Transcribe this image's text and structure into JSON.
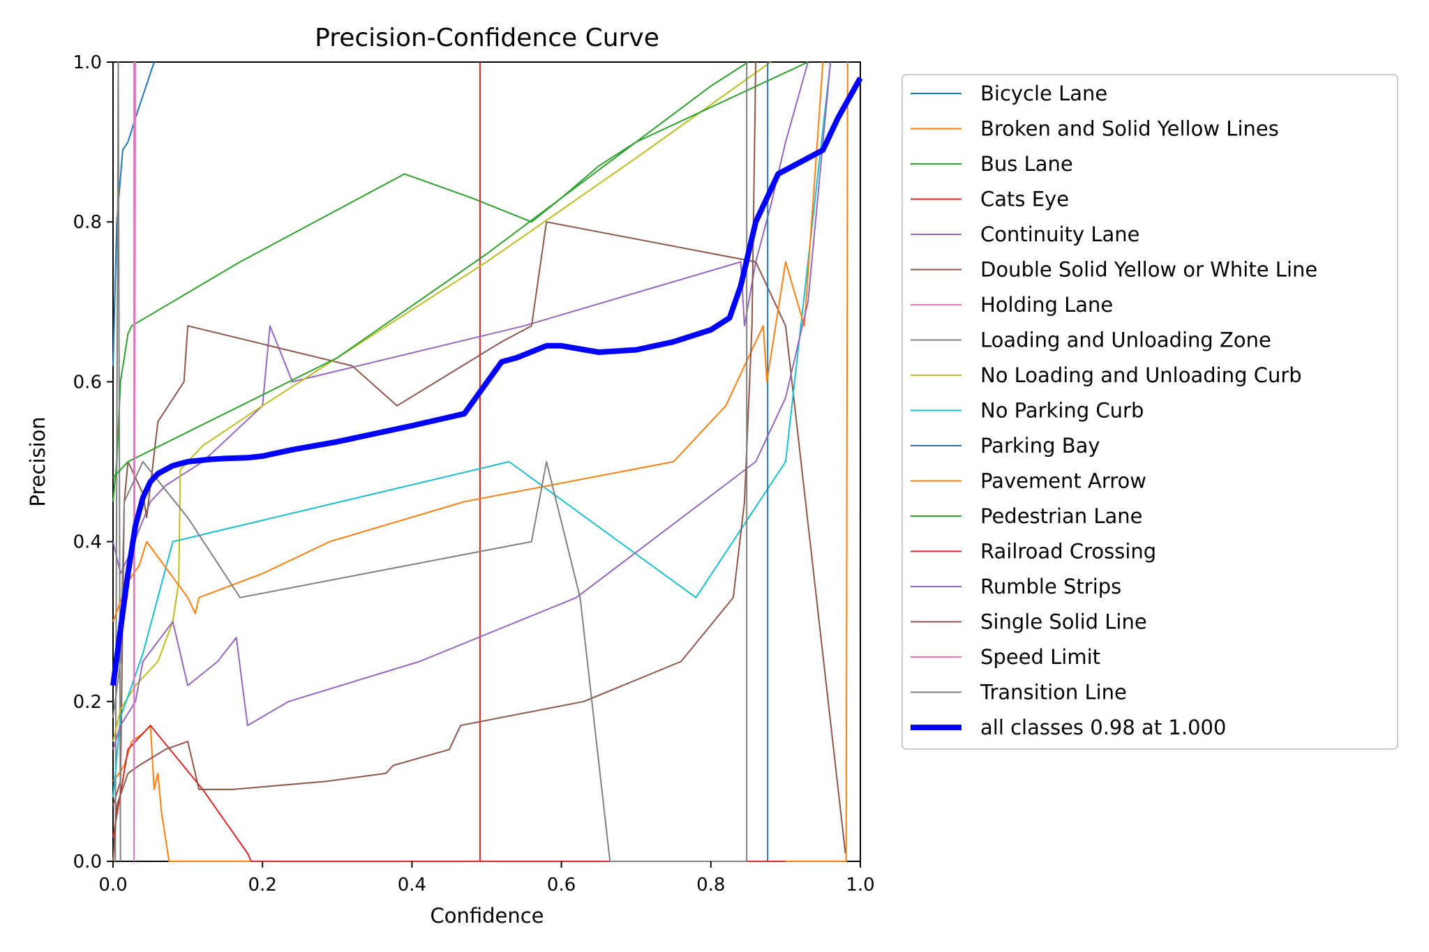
{
  "chart_data": {
    "type": "line",
    "title": "Precision-Confidence Curve",
    "xlabel": "Confidence",
    "ylabel": "Precision",
    "xlim": [
      0,
      1
    ],
    "ylim": [
      0,
      1
    ],
    "xticks": [
      "0.0",
      "0.2",
      "0.4",
      "0.6",
      "0.8",
      "1.0"
    ],
    "yticks": [
      "0.0",
      "0.2",
      "0.4",
      "0.6",
      "0.8",
      "1.0"
    ],
    "grid": false,
    "legend_position": "outside-right",
    "series": [
      {
        "name": "Bicycle Lane",
        "color": "#1f77b4",
        "points": [
          [
            0,
            0.62
          ],
          [
            0.005,
            0.8
          ],
          [
            0.013,
            0.89
          ],
          [
            0.02,
            0.9
          ],
          [
            0.03,
            0.93
          ],
          [
            0.055,
            1.0
          ]
        ]
      },
      {
        "name": "Broken and Solid Yellow Lines",
        "color": "#ff7f0e",
        "points": [
          [
            0,
            0.1
          ],
          [
            0.008,
            0.11
          ],
          [
            0.015,
            0.12
          ],
          [
            0.025,
            0.15
          ],
          [
            0.04,
            0.16
          ],
          [
            0.05,
            0.17
          ],
          [
            0.055,
            0.09
          ],
          [
            0.06,
            0.11
          ],
          [
            0.065,
            0.06
          ],
          [
            0.075,
            0.0
          ],
          [
            0.3,
            0.0
          ],
          [
            0.6,
            0.0
          ],
          [
            0.9,
            0.0
          ],
          [
            0.981,
            0.0
          ],
          [
            0.983,
            1.0
          ]
        ]
      },
      {
        "name": "Bus Lane",
        "color": "#2ca02c",
        "points": [
          [
            0,
            0.45
          ],
          [
            0.005,
            0.5
          ],
          [
            0.01,
            0.6
          ],
          [
            0.02,
            0.66
          ],
          [
            0.025,
            0.67
          ],
          [
            0.17,
            0.75
          ],
          [
            0.39,
            0.86
          ],
          [
            0.48,
            0.83
          ],
          [
            0.56,
            0.8
          ],
          [
            0.6,
            0.83
          ],
          [
            0.65,
            0.87
          ],
          [
            0.7,
            0.9
          ],
          [
            0.8,
            0.97
          ],
          [
            0.85,
            1.0
          ]
        ]
      },
      {
        "name": "Cats Eye",
        "color": "#d62728",
        "points": [
          [
            0.491,
            0.0
          ],
          [
            0.491,
            1.0
          ]
        ]
      },
      {
        "name": "Continuity Lane",
        "color": "#9467bd",
        "points": [
          [
            0,
            0.4
          ],
          [
            0.01,
            0.36
          ],
          [
            0.02,
            0.38
          ],
          [
            0.05,
            0.45
          ],
          [
            0.07,
            0.47
          ],
          [
            0.12,
            0.5
          ],
          [
            0.2,
            0.57
          ],
          [
            0.21,
            0.67
          ],
          [
            0.24,
            0.6
          ],
          [
            0.55,
            0.67
          ],
          [
            0.84,
            0.75
          ],
          [
            0.845,
            0.67
          ],
          [
            0.86,
            0.75
          ],
          [
            0.88,
            0.82
          ],
          [
            0.9,
            0.9
          ],
          [
            0.93,
            1.0
          ]
        ]
      },
      {
        "name": "Double Solid Yellow or White Line",
        "color": "#8c564b",
        "points": [
          [
            0,
            0.07
          ],
          [
            0.01,
            0.1
          ],
          [
            0.015,
            0.45
          ],
          [
            0.02,
            0.5
          ],
          [
            0.04,
            0.46
          ],
          [
            0.045,
            0.43
          ],
          [
            0.06,
            0.55
          ],
          [
            0.095,
            0.6
          ],
          [
            0.1,
            0.67
          ],
          [
            0.32,
            0.62
          ],
          [
            0.38,
            0.57
          ],
          [
            0.52,
            0.65
          ],
          [
            0.56,
            0.67
          ],
          [
            0.58,
            0.8
          ],
          [
            0.86,
            0.75
          ],
          [
            0.9,
            0.67
          ],
          [
            0.98,
            0.01
          ]
        ]
      },
      {
        "name": "Holding Lane",
        "color": "#e377c2",
        "points": [
          [
            0.028,
            0.0
          ],
          [
            0.028,
            1.0
          ]
        ]
      },
      {
        "name": "Loading and Unloading Zone",
        "color": "#7f7f7f",
        "points": [
          [
            0.003,
            0.0
          ],
          [
            0.007,
            1.0
          ],
          [
            0.01,
            0.0
          ]
        ]
      },
      {
        "name": "No Loading and Unloading Curb",
        "color": "#bcbd22",
        "points": [
          [
            0,
            0.15
          ],
          [
            0.01,
            0.19
          ],
          [
            0.03,
            0.22
          ],
          [
            0.06,
            0.25
          ],
          [
            0.08,
            0.3
          ],
          [
            0.088,
            0.35
          ],
          [
            0.09,
            0.49
          ],
          [
            0.12,
            0.52
          ],
          [
            0.2,
            0.57
          ],
          [
            0.5,
            0.75
          ],
          [
            0.7,
            0.88
          ],
          [
            0.88,
            1.0
          ]
        ]
      },
      {
        "name": "No Parking Curb",
        "color": "#17becf",
        "points": [
          [
            0,
            0.08
          ],
          [
            0.01,
            0.18
          ],
          [
            0.025,
            0.22
          ],
          [
            0.04,
            0.26
          ],
          [
            0.08,
            0.4
          ],
          [
            0.53,
            0.5
          ],
          [
            0.78,
            0.33
          ],
          [
            0.9,
            0.5
          ],
          [
            0.96,
            1.0
          ]
        ]
      },
      {
        "name": "Parking Bay",
        "color": "#1f77b4",
        "points": [
          [
            0.876,
            0.0
          ],
          [
            0.876,
            1.0
          ]
        ]
      },
      {
        "name": "Pavement Arrow",
        "color": "#ff7f0e",
        "points": [
          [
            0,
            0.3
          ],
          [
            0.02,
            0.35
          ],
          [
            0.035,
            0.37
          ],
          [
            0.045,
            0.4
          ],
          [
            0.1,
            0.33
          ],
          [
            0.11,
            0.31
          ],
          [
            0.115,
            0.33
          ],
          [
            0.2,
            0.36
          ],
          [
            0.29,
            0.4
          ],
          [
            0.47,
            0.45
          ],
          [
            0.75,
            0.5
          ],
          [
            0.82,
            0.57
          ],
          [
            0.87,
            0.67
          ],
          [
            0.875,
            0.6
          ],
          [
            0.9,
            0.75
          ],
          [
            0.925,
            0.67
          ],
          [
            0.95,
            1.0
          ]
        ]
      },
      {
        "name": "Pedestrian Lane",
        "color": "#2ca02c",
        "points": [
          [
            0,
            0.48
          ],
          [
            0.02,
            0.5
          ],
          [
            0.3,
            0.63
          ],
          [
            0.5,
            0.76
          ],
          [
            0.7,
            0.9
          ],
          [
            0.93,
            1.0
          ]
        ]
      },
      {
        "name": "Railroad Crossing",
        "color": "#d62728",
        "points": [
          [
            0,
            0.03
          ],
          [
            0.02,
            0.14
          ],
          [
            0.05,
            0.17
          ],
          [
            0.12,
            0.09
          ],
          [
            0.18,
            0.01
          ],
          [
            0.185,
            0.0
          ],
          [
            0.5,
            0.0
          ],
          [
            0.9,
            0.0
          ]
        ]
      },
      {
        "name": "Rumble Strips",
        "color": "#9467bd",
        "points": [
          [
            0,
            0.14
          ],
          [
            0.01,
            0.17
          ],
          [
            0.03,
            0.2
          ],
          [
            0.04,
            0.25
          ],
          [
            0.08,
            0.3
          ],
          [
            0.1,
            0.22
          ],
          [
            0.14,
            0.25
          ],
          [
            0.165,
            0.28
          ],
          [
            0.18,
            0.17
          ],
          [
            0.235,
            0.2
          ],
          [
            0.41,
            0.25
          ],
          [
            0.62,
            0.33
          ],
          [
            0.86,
            0.5
          ],
          [
            0.9,
            0.58
          ],
          [
            0.93,
            0.7
          ],
          [
            0.96,
            1.0
          ]
        ]
      },
      {
        "name": "Single Solid Line",
        "color": "#8c564b",
        "points": [
          [
            0,
            0.0
          ],
          [
            0.005,
            0.07
          ],
          [
            0.02,
            0.11
          ],
          [
            0.035,
            0.12
          ],
          [
            0.07,
            0.14
          ],
          [
            0.1,
            0.15
          ],
          [
            0.115,
            0.09
          ],
          [
            0.16,
            0.09
          ],
          [
            0.285,
            0.1
          ],
          [
            0.365,
            0.11
          ],
          [
            0.375,
            0.12
          ],
          [
            0.45,
            0.14
          ],
          [
            0.465,
            0.17
          ],
          [
            0.63,
            0.2
          ],
          [
            0.76,
            0.25
          ],
          [
            0.83,
            0.33
          ],
          [
            0.845,
            0.45
          ],
          [
            0.855,
            0.67
          ],
          [
            0.86,
            1.0
          ]
        ]
      },
      {
        "name": "Speed Limit",
        "color": "#e377c2",
        "points": [
          [
            0.028,
            0.0
          ],
          [
            0.028,
            0.0
          ],
          [
            0.03,
            1.0
          ]
        ]
      },
      {
        "name": "Transition Line",
        "color": "#7f7f7f",
        "points": [
          [
            0,
            0.18
          ],
          [
            0.01,
            0.25
          ],
          [
            0.015,
            0.45
          ],
          [
            0.04,
            0.5
          ],
          [
            0.1,
            0.43
          ],
          [
            0.17,
            0.33
          ],
          [
            0.56,
            0.4
          ],
          [
            0.58,
            0.5
          ],
          [
            0.625,
            0.33
          ],
          [
            0.665,
            0.0
          ],
          [
            0.7,
            0.0
          ],
          [
            0.848,
            0.0
          ],
          [
            0.848,
            1.0
          ]
        ]
      },
      {
        "name": "all classes 0.98 at 1.000",
        "color": "#0000ff",
        "bold": true,
        "points": [
          [
            0,
            0.22
          ],
          [
            0.01,
            0.29
          ],
          [
            0.02,
            0.36
          ],
          [
            0.03,
            0.42
          ],
          [
            0.04,
            0.455
          ],
          [
            0.05,
            0.475
          ],
          [
            0.06,
            0.485
          ],
          [
            0.08,
            0.495
          ],
          [
            0.1,
            0.5
          ],
          [
            0.13,
            0.503
          ],
          [
            0.15,
            0.504
          ],
          [
            0.18,
            0.505
          ],
          [
            0.2,
            0.507
          ],
          [
            0.24,
            0.515
          ],
          [
            0.3,
            0.525
          ],
          [
            0.35,
            0.535
          ],
          [
            0.4,
            0.545
          ],
          [
            0.47,
            0.56
          ],
          [
            0.52,
            0.625
          ],
          [
            0.54,
            0.63
          ],
          [
            0.58,
            0.645
          ],
          [
            0.6,
            0.645
          ],
          [
            0.65,
            0.637
          ],
          [
            0.7,
            0.64
          ],
          [
            0.75,
            0.65
          ],
          [
            0.8,
            0.665
          ],
          [
            0.825,
            0.68
          ],
          [
            0.84,
            0.72
          ],
          [
            0.86,
            0.8
          ],
          [
            0.88,
            0.84
          ],
          [
            0.89,
            0.86
          ],
          [
            0.92,
            0.875
          ],
          [
            0.95,
            0.89
          ],
          [
            0.97,
            0.93
          ],
          [
            1.0,
            0.98
          ]
        ]
      }
    ]
  }
}
